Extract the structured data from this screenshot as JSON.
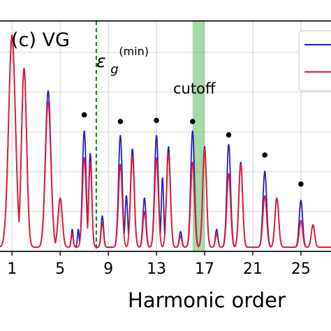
{
  "chart_data": {
    "type": "line",
    "panel_label": "(c) VG",
    "xlabel": "Harmonic order",
    "ylabel": "",
    "xlim": [
      0,
      27.5
    ],
    "ylim": [
      0,
      1.0
    ],
    "x_ticks": [
      1,
      5,
      9,
      13,
      17,
      21,
      25
    ],
    "x_tick_labels": [
      "1",
      "5",
      "9",
      "13",
      "17",
      "21",
      "25"
    ],
    "grid": true,
    "legend": {
      "placement": "top-right",
      "entries": [
        {
          "color": "#1f1fcc"
        },
        {
          "color": "#e8192c"
        }
      ]
    },
    "annotations": {
      "epsilon_label": "ε",
      "epsilon_sub": "g",
      "epsilon_sup": "(min)",
      "epsilon_x": 8.0,
      "cutoff_label": "cutoff",
      "cutoff_band": [
        16.0,
        17.0
      ],
      "cutoff_color": "#5fb85f"
    },
    "dot_markers": {
      "x": [
        7,
        10,
        13,
        16,
        19,
        22,
        25
      ],
      "y": [
        0.58,
        0.55,
        0.555,
        0.55,
        0.49,
        0.4,
        0.27
      ]
    },
    "series": [
      {
        "color": "#1f1fcc",
        "peaks": [
          [
            1,
            0.94,
            0.4
          ],
          [
            2,
            0.8,
            0.3
          ],
          [
            4,
            0.7,
            0.32
          ],
          [
            5,
            0.22,
            0.25
          ],
          [
            6,
            0.08,
            0.12
          ],
          [
            6.5,
            0.08,
            0.1
          ],
          [
            7,
            0.52,
            0.22
          ],
          [
            7.5,
            0.42,
            0.18
          ],
          [
            8.5,
            0.14,
            0.15
          ],
          [
            10,
            0.5,
            0.22
          ],
          [
            10.5,
            0.23,
            0.15
          ],
          [
            11,
            0.44,
            0.22
          ],
          [
            12,
            0.22,
            0.18
          ],
          [
            13,
            0.5,
            0.22
          ],
          [
            13.5,
            0.31,
            0.14
          ],
          [
            14,
            0.45,
            0.22
          ],
          [
            15,
            0.07,
            0.15
          ],
          [
            16,
            0.52,
            0.22
          ],
          [
            17,
            0.45,
            0.22
          ],
          [
            18,
            0.08,
            0.15
          ],
          [
            19,
            0.46,
            0.22
          ],
          [
            20,
            0.38,
            0.22
          ],
          [
            22,
            0.34,
            0.22
          ],
          [
            23,
            0.22,
            0.22
          ],
          [
            25,
            0.21,
            0.2
          ],
          [
            26,
            0.1,
            0.2
          ]
        ]
      },
      {
        "color": "#e8192c",
        "peaks": [
          [
            1,
            0.95,
            0.4
          ],
          [
            2,
            0.8,
            0.3
          ],
          [
            4,
            0.65,
            0.32
          ],
          [
            5,
            0.22,
            0.25
          ],
          [
            6,
            0.06,
            0.12
          ],
          [
            7,
            0.4,
            0.22
          ],
          [
            7.5,
            0.38,
            0.18
          ],
          [
            8.5,
            0.11,
            0.15
          ],
          [
            10,
            0.37,
            0.22
          ],
          [
            11,
            0.41,
            0.22
          ],
          [
            12,
            0.16,
            0.18
          ],
          [
            13,
            0.4,
            0.22
          ],
          [
            14,
            0.42,
            0.22
          ],
          [
            15,
            0.05,
            0.15
          ],
          [
            16,
            0.38,
            0.22
          ],
          [
            17,
            0.44,
            0.22
          ],
          [
            18,
            0.06,
            0.15
          ],
          [
            19,
            0.33,
            0.22
          ],
          [
            20,
            0.37,
            0.22
          ],
          [
            22,
            0.23,
            0.22
          ],
          [
            23,
            0.22,
            0.22
          ],
          [
            25,
            0.12,
            0.2
          ],
          [
            26,
            0.1,
            0.2
          ]
        ]
      }
    ]
  }
}
